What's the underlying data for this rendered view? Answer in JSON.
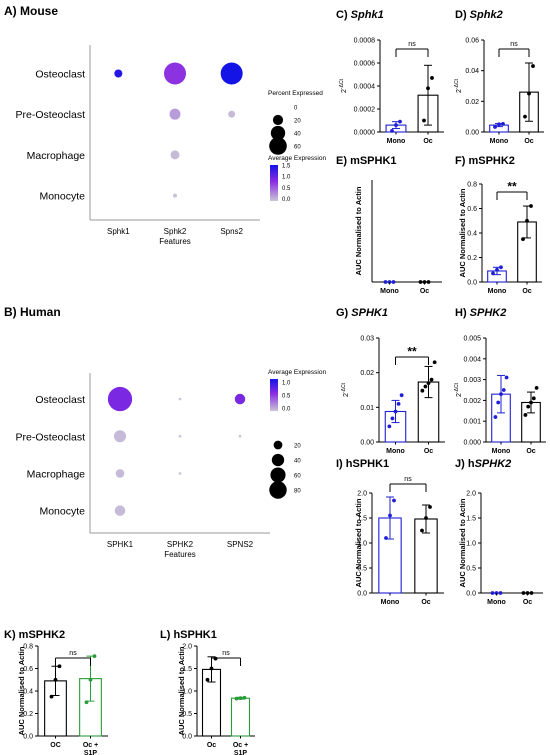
{
  "figure": {
    "colors": {
      "mono": "#1f1fd6",
      "oc": "#000000",
      "oc_s1p": "#2a9d3a",
      "dot_low": "#c9c4d6",
      "dot_high": "#1414e6",
      "dot_mid": "#8a2be2"
    }
  },
  "chart_data": [
    {
      "id": "A",
      "type": "dotplot",
      "panel_label": "A)",
      "title": "Mouse",
      "rows": [
        "Osteoclast",
        "Pre-Osteoclast",
        "Macrophage",
        "Monocyte"
      ],
      "cols": [
        "Sphk1",
        "Sphk2",
        "Spns2"
      ],
      "xlabel": "Features",
      "percent_expressed": [
        [
          8,
          60,
          60
        ],
        [
          0,
          15,
          6
        ],
        [
          0,
          10,
          0
        ],
        [
          0,
          2,
          0
        ]
      ],
      "average_expression": [
        [
          1.6,
          1.2,
          1.8
        ],
        [
          0,
          0.4,
          0.1
        ],
        [
          0,
          0.1,
          0
        ],
        [
          0,
          0,
          0
        ]
      ],
      "legend": {
        "size_title": "Percent Expressed",
        "size_values": [
          "0",
          "20",
          "40",
          "60"
        ],
        "color_title": "Average Expression",
        "color_ticks": [
          "1.5",
          "1.0",
          "0.5",
          "0.0"
        ]
      }
    },
    {
      "id": "B",
      "type": "dotplot",
      "panel_label": "B)",
      "title": "Human",
      "rows": [
        "Osteoclast",
        "Pre-Osteoclast",
        "Macrophage",
        "Monocyte"
      ],
      "cols": [
        "SPHK1",
        "SPHK2",
        "SPNS2"
      ],
      "xlabel": "Features",
      "percent_expressed": [
        [
          80,
          1,
          15
        ],
        [
          20,
          1,
          1
        ],
        [
          10,
          1,
          0
        ],
        [
          15,
          0,
          0
        ]
      ],
      "average_expression": [
        [
          1.3,
          0,
          1.3
        ],
        [
          0.1,
          0,
          0
        ],
        [
          0.1,
          0,
          0
        ],
        [
          0.1,
          0,
          0
        ]
      ],
      "legend": {
        "color_title": "Average Expression",
        "color_ticks": [
          "1.0",
          "0.5",
          "0.0"
        ],
        "size_title": "",
        "size_values": [
          "20",
          "40",
          "60",
          "80"
        ]
      }
    },
    {
      "id": "C",
      "type": "bar",
      "panel_label": "C)",
      "title": "Sphk1",
      "title_italic": true,
      "categories": [
        "Mono",
        "Oc"
      ],
      "ylabel": "2^-ΔCt",
      "ylim": [
        0,
        0.0008
      ],
      "yticks": [
        "0.0000",
        "0.0002",
        "0.0004",
        "0.0006",
        "0.0008"
      ],
      "values": [
        6e-05,
        0.00032
      ],
      "errors": [
        3e-05,
        0.00026
      ],
      "points": [
        [
          1e-05,
          6e-05,
          9e-05
        ],
        [
          0.0001,
          0.00038,
          0.00047
        ]
      ],
      "significance": "ns"
    },
    {
      "id": "D",
      "type": "bar",
      "panel_label": "D)",
      "title": "Sphk2",
      "title_italic": true,
      "categories": [
        "Mono",
        "Oc"
      ],
      "ylabel": "2^-ΔCt",
      "ylim": [
        0,
        0.06
      ],
      "yticks": [
        "0.00",
        "0.02",
        "0.04",
        "0.06"
      ],
      "values": [
        0.0045,
        0.026
      ],
      "errors": [
        0.001,
        0.019
      ],
      "points": [
        [
          0.0033,
          0.005,
          0.0053
        ],
        [
          0.01,
          0.025,
          0.043
        ]
      ],
      "significance": "ns"
    },
    {
      "id": "E",
      "type": "bar",
      "panel_label": "E)",
      "title": "mSPHK1",
      "title_italic": false,
      "categories": [
        "Mono",
        "Oc"
      ],
      "ylabel": "AUC Normalised to Actin",
      "ylim": [
        0,
        1
      ],
      "yticks": [],
      "values": [
        0,
        0
      ],
      "errors": [
        0,
        0
      ],
      "points": [
        [
          0,
          0,
          0
        ],
        [
          0,
          0,
          0
        ]
      ],
      "significance": ""
    },
    {
      "id": "F",
      "type": "bar",
      "panel_label": "F)",
      "title": "mSPHK2",
      "title_italic": false,
      "categories": [
        "Mono",
        "Oc"
      ],
      "ylabel": "AUC Normalised to Actin",
      "ylim": [
        0,
        0.8
      ],
      "yticks": [
        "0.0",
        "0.2",
        "0.4",
        "0.6",
        "0.8"
      ],
      "values": [
        0.09,
        0.49
      ],
      "errors": [
        0.03,
        0.13
      ],
      "points": [
        [
          0.07,
          0.1,
          0.12
        ],
        [
          0.35,
          0.5,
          0.62
        ]
      ],
      "significance": "**"
    },
    {
      "id": "G",
      "type": "bar",
      "panel_label": "G)",
      "title": "SPHK1",
      "title_italic": true,
      "categories": [
        "Mono",
        "Oc"
      ],
      "ylabel": "2^-ΔCt",
      "ylim": [
        0,
        0.03
      ],
      "yticks": [
        "0.00",
        "0.01",
        "0.02",
        "0.03"
      ],
      "values": [
        0.0088,
        0.0173
      ],
      "errors": [
        0.0032,
        0.0045
      ],
      "points": [
        [
          0.0045,
          0.0068,
          0.0088,
          0.011,
          0.0135
        ],
        [
          0.0148,
          0.016,
          0.017,
          0.018,
          0.023
        ]
      ],
      "significance": "**"
    },
    {
      "id": "H",
      "type": "bar",
      "panel_label": "H)",
      "title": "SPHK2",
      "title_italic": true,
      "categories": [
        "Mono",
        "Oc"
      ],
      "ylabel": "2^-ΔCt",
      "ylim": [
        0,
        0.005
      ],
      "yticks": [
        "0.000",
        "0.001",
        "0.002",
        "0.003",
        "0.004",
        "0.005"
      ],
      "values": [
        0.0023,
        0.0019
      ],
      "errors": [
        0.0009,
        0.0005
      ],
      "points": [
        [
          0.0012,
          0.0019,
          0.0023,
          0.0025,
          0.0031
        ],
        [
          0.0013,
          0.0017,
          0.0019,
          0.0021,
          0.0026
        ]
      ],
      "significance": ""
    },
    {
      "id": "I",
      "type": "bar",
      "panel_label": "I)",
      "title": "hSPHK1",
      "title_italic": false,
      "categories": [
        "Mono",
        "Oc"
      ],
      "ylabel": "AUC Normalised to Actin",
      "ylim": [
        0,
        2.0
      ],
      "yticks": [
        "0.0",
        "0.5",
        "1.0",
        "1.5",
        "2.0"
      ],
      "values": [
        1.5,
        1.48
      ],
      "errors": [
        0.42,
        0.28
      ],
      "points": [
        [
          1.1,
          1.55,
          1.85
        ],
        [
          1.25,
          1.5,
          1.72
        ]
      ],
      "significance": "ns"
    },
    {
      "id": "J",
      "type": "bar",
      "panel_label": "J)",
      "title": "hSPHK2",
      "title_italic": false,
      "title_parts": [
        "h",
        "SPHK2"
      ],
      "categories": [
        "Mono",
        "Oc"
      ],
      "ylabel": "AUC Normalised to Actin",
      "ylim": [
        0,
        2.0
      ],
      "yticks": [
        "0.0",
        "0.5",
        "1.0",
        "1.5",
        "2.0"
      ],
      "values": [
        0,
        0
      ],
      "errors": [
        0,
        0
      ],
      "points": [
        [
          0,
          0,
          0
        ],
        [
          0,
          0,
          0
        ]
      ],
      "significance": ""
    },
    {
      "id": "K",
      "type": "bar",
      "panel_label": "K)",
      "title": "mSPHK2",
      "title_italic": false,
      "categories": [
        "OC",
        "Oc + S1P"
      ],
      "ylabel": "AUC Normalised to Actin",
      "ylim": [
        0,
        0.8
      ],
      "yticks": [
        "0.0",
        "0.2",
        "0.4",
        "0.6",
        "0.8"
      ],
      "values": [
        0.49,
        0.51
      ],
      "errors": [
        0.13,
        0.2
      ],
      "points": [
        [
          0.35,
          0.5,
          0.62
        ],
        [
          0.3,
          0.5,
          0.71
        ]
      ],
      "significance": "ns"
    },
    {
      "id": "L",
      "type": "bar",
      "panel_label": "L)",
      "title": "hSPHK1",
      "title_italic": false,
      "categories": [
        "Oc",
        "Oc + S1P"
      ],
      "ylabel": "AUC Normalised to Actin",
      "ylim": [
        0,
        2.0
      ],
      "yticks": [
        "0.0",
        "0.5",
        "1.0",
        "1.5",
        "2.0"
      ],
      "values": [
        1.48,
        0.84
      ],
      "errors": [
        0.28,
        0.02
      ],
      "points": [
        [
          1.25,
          1.5,
          1.72
        ],
        [
          0.83,
          0.84,
          0.85
        ]
      ],
      "significance": "ns"
    }
  ]
}
